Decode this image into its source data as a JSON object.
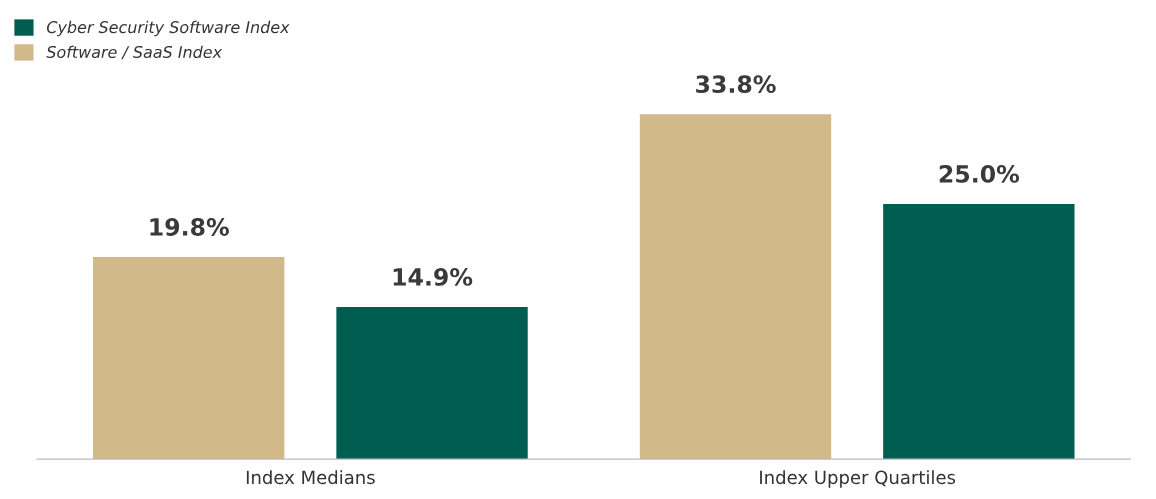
{
  "chart_data": {
    "type": "bar",
    "categories": [
      "Index Medians",
      "Index Upper Quartiles"
    ],
    "series": [
      {
        "name": "Software / SaaS Index",
        "color": "#d2b98a",
        "values": [
          19.8,
          33.8
        ],
        "value_labels": [
          "19.8%",
          "33.8%"
        ]
      },
      {
        "name": "Cyber Security Software Index",
        "color": "#005e50",
        "values": [
          14.9,
          25.0
        ],
        "value_labels": [
          "14.9%",
          "25.0%"
        ]
      }
    ],
    "legend": "top left"
  }
}
